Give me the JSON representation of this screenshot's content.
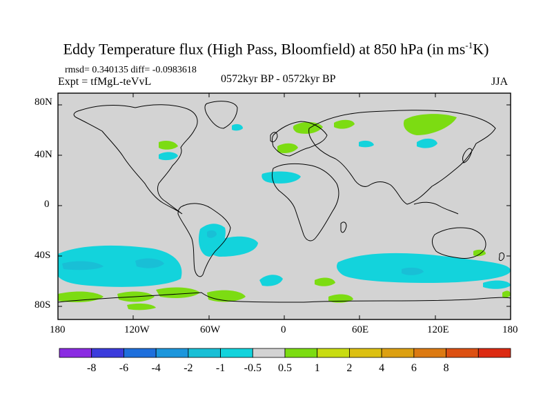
{
  "header": {
    "title_main": "Eddy Temperature flux (High Pass, Bloomfield) at 850 hPa (in ms",
    "title_sup": "-1",
    "title_end": "K)",
    "stats": "rmsd= 0.340135 diff= -0.0983618",
    "expt": "Expt = tfMgL-teVvL",
    "period": "0572kyr BP - 0572kyr BP",
    "season": "JJA"
  },
  "map": {
    "background_color": "#d3d3d3",
    "lat_ticks": [
      "80N",
      "40N",
      "0",
      "40S",
      "80S"
    ],
    "lon_ticks": [
      "180",
      "120W",
      "60W",
      "0",
      "60E",
      "120E",
      "180"
    ]
  },
  "colorbar": {
    "colors": [
      "#8a2be2",
      "#3b3bdc",
      "#1e6fdc",
      "#1c96dc",
      "#19bfd6",
      "#13d3dc",
      "#d3d3d3",
      "#7cdc12",
      "#c8dc12",
      "#dcc012",
      "#dca012",
      "#dc7a12",
      "#dc5012",
      "#dc2a12"
    ],
    "labels": [
      "-8",
      "-6",
      "-4",
      "-2",
      "-1",
      "-0.5",
      "0.5",
      "1",
      "2",
      "4",
      "6",
      "8"
    ]
  }
}
